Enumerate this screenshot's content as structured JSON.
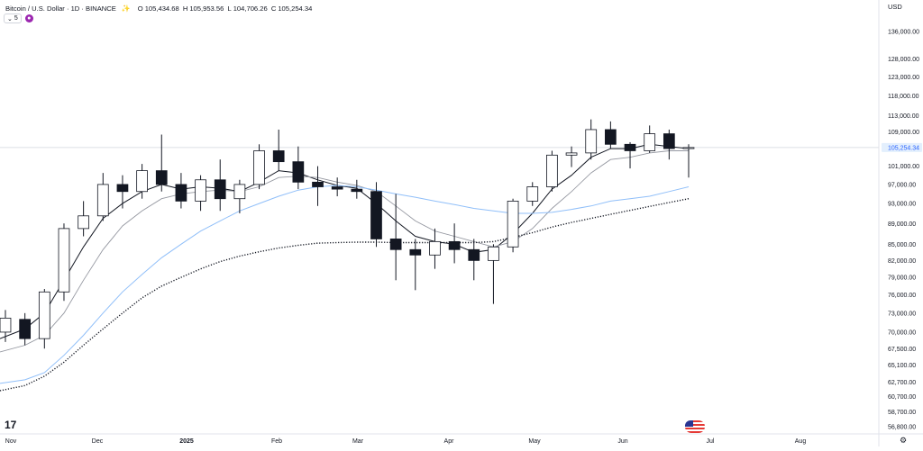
{
  "header": {
    "symbol_title": "Bitcoin / U.S. Dollar · 1D · BINANCE",
    "share_icon": "share-icon",
    "ohlc": {
      "open_key": "O",
      "open": "105,434.68",
      "high_key": "H",
      "high": "105,953.56",
      "low_key": "L",
      "low": "104,706.26",
      "close_key": "C",
      "close": "105,254.34"
    },
    "indicator_count": "5",
    "currency": "USD"
  },
  "colors": {
    "bull": "#ffffff",
    "bear": "#131722",
    "wick": "#131722",
    "ema_fast": "#131722",
    "ema_slow": "#9598a1",
    "ma_blue": "#90bff9",
    "ma_dotted": "#131722",
    "price_tag": "#e3effd",
    "price_tag_text": "#2962ff",
    "current_line": "#d1d4dc"
  },
  "icons": [
    "tradingview-logo-icon",
    "us-flag-icon",
    "gear-icon",
    "chevron-down-icon",
    "indicator-icon"
  ],
  "chart_data": {
    "type": "candlestick",
    "y_axis": {
      "ticks": [
        136000,
        128000,
        123000,
        118000,
        113000,
        109000,
        105254.34,
        101000,
        97000,
        93000,
        89000,
        85000,
        82000,
        79000,
        76000,
        73000,
        70000,
        67500,
        65100,
        62700,
        60700,
        58700,
        56800
      ],
      "tick_labels": [
        "136,000.00",
        "128,000.00",
        "123,000.00",
        "118,000.00",
        "113,000.00",
        "109,000.00",
        "105,254.34",
        "101,000.00",
        "97,000.00",
        "93,000.00",
        "89,000.00",
        "85,000.00",
        "82,000.00",
        "79,000.00",
        "76,000.00",
        "73,000.00",
        "70,000.00",
        "67,500.00",
        "65,100.00",
        "62,700.00",
        "60,700.00",
        "58,700.00",
        "56,800.00"
      ],
      "scale": "log",
      "current_price": 105254.34,
      "current_price_label": "105,254.34"
    },
    "x_axis": {
      "labels": [
        "Nov",
        "Dec",
        "2025",
        "Feb",
        "Mar",
        "Apr",
        "May",
        "Jun",
        "Jul",
        "Aug"
      ]
    },
    "ohlc_weekly_approx": [
      {
        "o": 70000,
        "h": 73500,
        "l": 68500,
        "c": 72200
      },
      {
        "o": 72000,
        "h": 73000,
        "l": 68000,
        "c": 69000
      },
      {
        "o": 69000,
        "h": 77000,
        "l": 67500,
        "c": 76500
      },
      {
        "o": 76500,
        "h": 89000,
        "l": 75000,
        "c": 88000
      },
      {
        "o": 88000,
        "h": 93500,
        "l": 86500,
        "c": 90500
      },
      {
        "o": 90500,
        "h": 99500,
        "l": 89500,
        "c": 97000
      },
      {
        "o": 97000,
        "h": 99000,
        "l": 92000,
        "c": 95500
      },
      {
        "o": 95500,
        "h": 101500,
        "l": 94000,
        "c": 100000
      },
      {
        "o": 100000,
        "h": 108300,
        "l": 95500,
        "c": 97000
      },
      {
        "o": 97000,
        "h": 99500,
        "l": 92000,
        "c": 93500
      },
      {
        "o": 93500,
        "h": 99000,
        "l": 91500,
        "c": 98000
      },
      {
        "o": 98000,
        "h": 102500,
        "l": 91500,
        "c": 94000
      },
      {
        "o": 94000,
        "h": 98000,
        "l": 91000,
        "c": 97000
      },
      {
        "o": 97000,
        "h": 106000,
        "l": 96000,
        "c": 104500
      },
      {
        "o": 104500,
        "h": 109500,
        "l": 100000,
        "c": 102000
      },
      {
        "o": 102000,
        "h": 105500,
        "l": 96000,
        "c": 97500
      },
      {
        "o": 97500,
        "h": 101000,
        "l": 92500,
        "c": 96500
      },
      {
        "o": 96500,
        "h": 98500,
        "l": 94500,
        "c": 96000
      },
      {
        "o": 96000,
        "h": 98000,
        "l": 94000,
        "c": 95500
      },
      {
        "o": 95500,
        "h": 97500,
        "l": 84500,
        "c": 86000
      },
      {
        "o": 86000,
        "h": 95000,
        "l": 78500,
        "c": 84000
      },
      {
        "o": 84000,
        "h": 86000,
        "l": 76800,
        "c": 83000
      },
      {
        "o": 83000,
        "h": 88000,
        "l": 80500,
        "c": 85500
      },
      {
        "o": 85500,
        "h": 89000,
        "l": 81500,
        "c": 84000
      },
      {
        "o": 84000,
        "h": 86000,
        "l": 78500,
        "c": 82000
      },
      {
        "o": 82000,
        "h": 85000,
        "l": 74500,
        "c": 84500
      },
      {
        "o": 84500,
        "h": 94000,
        "l": 83500,
        "c": 93500
      },
      {
        "o": 93500,
        "h": 97500,
        "l": 92500,
        "c": 96500
      },
      {
        "o": 96500,
        "h": 104500,
        "l": 95500,
        "c": 103500
      },
      {
        "o": 103500,
        "h": 105500,
        "l": 100800,
        "c": 104000
      },
      {
        "o": 104000,
        "h": 112000,
        "l": 102500,
        "c": 109500
      },
      {
        "o": 109500,
        "h": 111500,
        "l": 105000,
        "c": 106000
      },
      {
        "o": 106000,
        "h": 106500,
        "l": 100500,
        "c": 104500
      },
      {
        "o": 104500,
        "h": 110500,
        "l": 104000,
        "c": 108500
      },
      {
        "o": 108500,
        "h": 109500,
        "l": 102500,
        "c": 105000
      },
      {
        "o": 105000,
        "h": 106000,
        "l": 98500,
        "c": 105254
      }
    ],
    "moving_averages": [
      {
        "style": "solid-dark",
        "values": [
          69000,
          70500,
          73000,
          78500,
          84500,
          90000,
          93000,
          95500,
          97000,
          96000,
          96500,
          96200,
          95500,
          97500,
          100000,
          99500,
          98000,
          96800,
          96200,
          93000,
          89500,
          86500,
          85500,
          85000,
          83500,
          84000,
          87000,
          91000,
          96000,
          99000,
          103000,
          105000,
          105000,
          106000,
          105500,
          105000
        ]
      },
      {
        "style": "solid-grey",
        "values": [
          67000,
          68000,
          69500,
          73000,
          78500,
          84000,
          88500,
          91500,
          94000,
          95000,
          95500,
          95800,
          95500,
          96500,
          98500,
          98800,
          98500,
          97500,
          96800,
          95500,
          92500,
          89500,
          87500,
          86500,
          85500,
          84500,
          85500,
          88000,
          92000,
          95500,
          99500,
          102500,
          103000,
          104000,
          104500,
          104500
        ]
      },
      {
        "style": "solid-blue",
        "values": [
          62500,
          63000,
          64000,
          66500,
          69500,
          73000,
          76500,
          79500,
          82500,
          85000,
          87500,
          89500,
          91500,
          93000,
          94500,
          95800,
          96500,
          96800,
          96500,
          95800,
          95000,
          94300,
          93500,
          92800,
          92000,
          91500,
          91000,
          91000,
          91200,
          91800,
          92500,
          93500,
          94000,
          94500,
          95500,
          96500
        ]
      },
      {
        "style": "dotted-dark",
        "values": [
          61500,
          62200,
          63500,
          65500,
          68000,
          70500,
          73000,
          75500,
          77500,
          79000,
          80500,
          81800,
          82800,
          83600,
          84300,
          84800,
          85200,
          85300,
          85400,
          85400,
          85300,
          85300,
          85300,
          85300,
          85300,
          85500,
          86300,
          87200,
          88300,
          89200,
          90000,
          90800,
          91600,
          92400,
          93200,
          94000
        ]
      }
    ]
  }
}
